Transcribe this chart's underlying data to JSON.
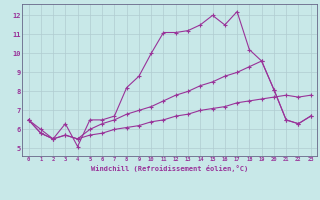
{
  "background_color": "#c8e8e8",
  "grid_color": "#b0ccd0",
  "line_color": "#993399",
  "xlabel": "Windchill (Refroidissement éolien,°C)",
  "xlim": [
    -0.5,
    23.5
  ],
  "ylim": [
    4.6,
    12.6
  ],
  "yticks": [
    5,
    6,
    7,
    8,
    9,
    10,
    11,
    12
  ],
  "xticks": [
    0,
    1,
    2,
    3,
    4,
    5,
    6,
    7,
    8,
    9,
    10,
    11,
    12,
    13,
    14,
    15,
    16,
    17,
    18,
    19,
    20,
    21,
    22,
    23
  ],
  "line1_x": [
    0,
    1,
    2,
    3,
    4,
    5,
    6,
    7,
    8,
    9,
    10,
    11,
    12,
    13,
    14,
    15,
    16,
    17,
    18,
    19,
    20,
    21,
    22,
    23
  ],
  "line1_y": [
    6.5,
    6.0,
    5.5,
    6.3,
    5.1,
    6.5,
    6.5,
    6.7,
    8.2,
    8.8,
    10.0,
    11.1,
    11.1,
    11.2,
    11.5,
    12.0,
    11.5,
    12.2,
    10.2,
    9.6,
    8.1,
    6.5,
    6.3,
    6.7
  ],
  "line2_x": [
    0,
    1,
    2,
    3,
    4,
    5,
    6,
    7,
    8,
    9,
    10,
    11,
    12,
    13,
    14,
    15,
    16,
    17,
    18,
    19,
    20,
    21,
    22,
    23
  ],
  "line2_y": [
    6.5,
    5.8,
    5.5,
    5.7,
    5.5,
    6.0,
    6.3,
    6.5,
    6.8,
    7.0,
    7.2,
    7.5,
    7.8,
    8.0,
    8.3,
    8.5,
    8.8,
    9.0,
    9.3,
    9.6,
    8.1,
    6.5,
    6.3,
    6.7
  ],
  "line3_x": [
    0,
    1,
    2,
    3,
    4,
    5,
    6,
    7,
    8,
    9,
    10,
    11,
    12,
    13,
    14,
    15,
    16,
    17,
    18,
    19,
    20,
    21,
    22,
    23
  ],
  "line3_y": [
    6.5,
    5.8,
    5.5,
    5.7,
    5.5,
    5.7,
    5.8,
    6.0,
    6.1,
    6.2,
    6.4,
    6.5,
    6.7,
    6.8,
    7.0,
    7.1,
    7.2,
    7.4,
    7.5,
    7.6,
    7.7,
    7.8,
    7.7,
    7.8
  ]
}
